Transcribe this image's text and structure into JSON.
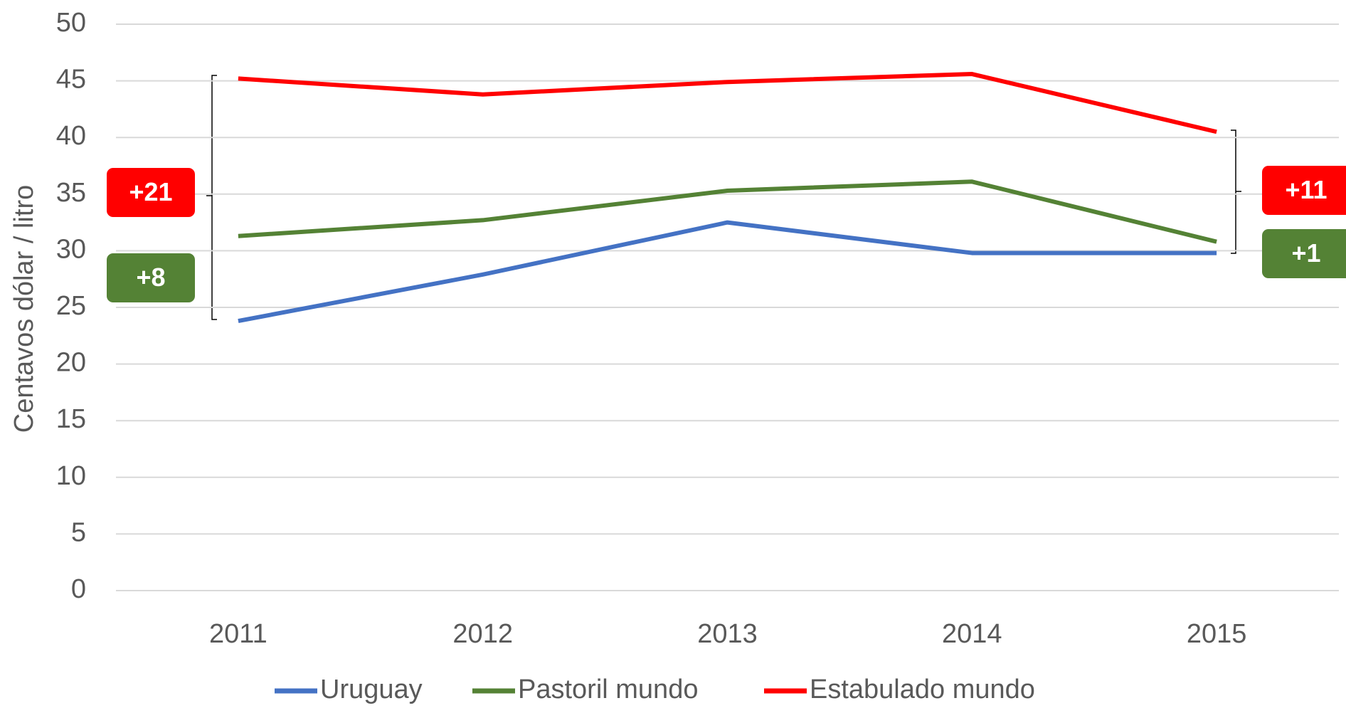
{
  "chart_data": {
    "type": "line",
    "y_label": "Centavos dólar / litro",
    "categories": [
      "2011",
      "2012",
      "2013",
      "2014",
      "2015"
    ],
    "series": [
      {
        "name": "Uruguay",
        "color": "#4472c4",
        "values": [
          23.8,
          27.9,
          32.5,
          29.8,
          29.8
        ]
      },
      {
        "name": "Pastoril mundo",
        "color": "#548235",
        "values": [
          31.3,
          32.7,
          35.3,
          36.1,
          30.8
        ]
      },
      {
        "name": "Estabulado mundo",
        "color": "#ff0000",
        "values": [
          45.2,
          43.8,
          44.9,
          45.6,
          40.5
        ]
      }
    ],
    "ylim": [
      0,
      50
    ],
    "yticks": [
      0,
      5,
      10,
      15,
      20,
      25,
      30,
      35,
      40,
      45,
      50
    ],
    "grid": true,
    "legend": "bottom",
    "annotations": [
      {
        "text": "+21",
        "color": "#ff0000"
      },
      {
        "text": "+8",
        "color": "#548235"
      },
      {
        "text": "+11",
        "color": "#ff0000"
      },
      {
        "text": "+1",
        "color": "#548235"
      }
    ]
  }
}
